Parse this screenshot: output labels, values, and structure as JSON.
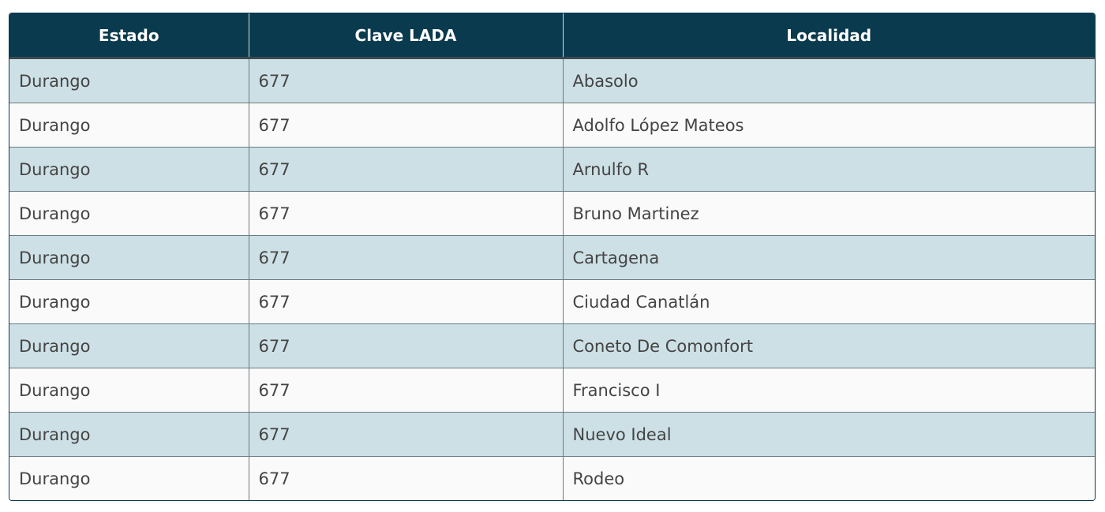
{
  "table": {
    "header": [
      "Estado",
      "Clave LADA",
      "Localidad"
    ],
    "rows": [
      [
        "Durango",
        "677",
        "Abasolo"
      ],
      [
        "Durango",
        "677",
        "Adolfo López Mateos"
      ],
      [
        "Durango",
        "677",
        "Arnulfo R"
      ],
      [
        "Durango",
        "677",
        "Bruno Martinez"
      ],
      [
        "Durango",
        "677",
        "Cartagena"
      ],
      [
        "Durango",
        "677",
        "Ciudad Canatlán"
      ],
      [
        "Durango",
        "677",
        "Coneto De Comonfort"
      ],
      [
        "Durango",
        "677",
        "Francisco I"
      ],
      [
        "Durango",
        "677",
        "Nuevo Ideal"
      ],
      [
        "Durango",
        "677",
        "Rodeo"
      ]
    ]
  }
}
